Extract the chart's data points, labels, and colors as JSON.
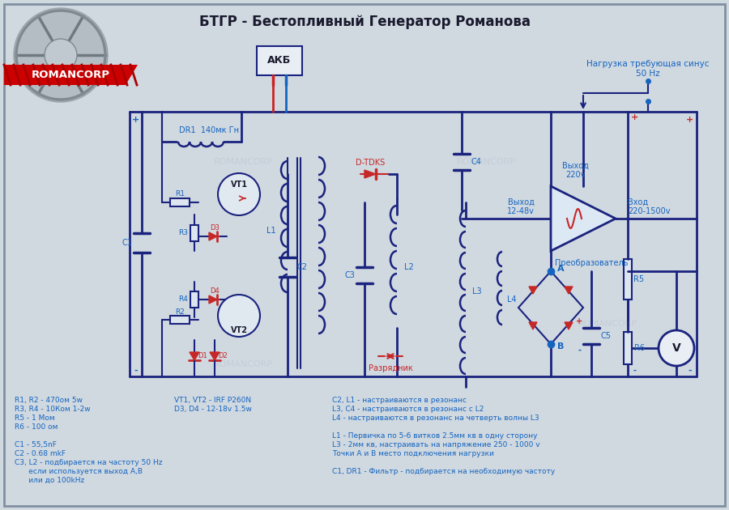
{
  "title": "БТГР - Бестопливный Генератор Романова",
  "bg_color": "#d0d8e0",
  "circuit_bg": "#c8d4de",
  "title_color": "#1a1a2e",
  "blue_color": "#1565c0",
  "red_color": "#c62828",
  "dark_blue": "#0d3b6e",
  "wire_color": "#1a237e",
  "component_color": "#1565c0",
  "logo_text": "ROMANCORP",
  "logo_bg": "#cc0000",
  "akb_label": "АКБ",
  "dr1_label": "DR1  140мк Гн",
  "vt1_label": "VT1",
  "vt2_label": "VT2",
  "d_tdks_label": "D-TDKS",
  "razr_label": "Разрядник",
  "preob_label": "Преобразователь",
  "output_220": "Выход\n220v",
  "input_label": "Вход\n220-1500v",
  "output_1248": "Выход\n12-48v",
  "load_label": "Нагрузка требующая синус\n50 Hz",
  "notes": [
    "R1, R2 - 470ом 5w",
    "R3, R4 - 10Ком 1-2w",
    "R5 - 1 Мом",
    "R6 - 100 ом",
    "",
    "C1 - 55,5nF",
    "C2 - 0.68 mkF",
    "C3, L2 - подбирается на частоту 50 Hz",
    "      если используется выход А,В",
    "      или до 100kHz"
  ],
  "notes2": [
    "VT1, VT2 - IRF P260N",
    "D3, D4 - 12-18v 1.5w"
  ],
  "notes3": [
    "C2, L1 - настраиваются в резонанс",
    "L3, C4 - настраиваются в резонанс с L2",
    "L4 - настраиваются в резонанс на четверть волны L3",
    "",
    "L1 - Первичка по 5-6 витков 2.5мм кв в одну сторону",
    "L3 - 2мм кв, настраивать на напряжение 250 - 1000 v",
    "Точки А и В место подключения нагрузки",
    "",
    "C1, DR1 - Фильтр - подбирается на необходимую частоту"
  ]
}
